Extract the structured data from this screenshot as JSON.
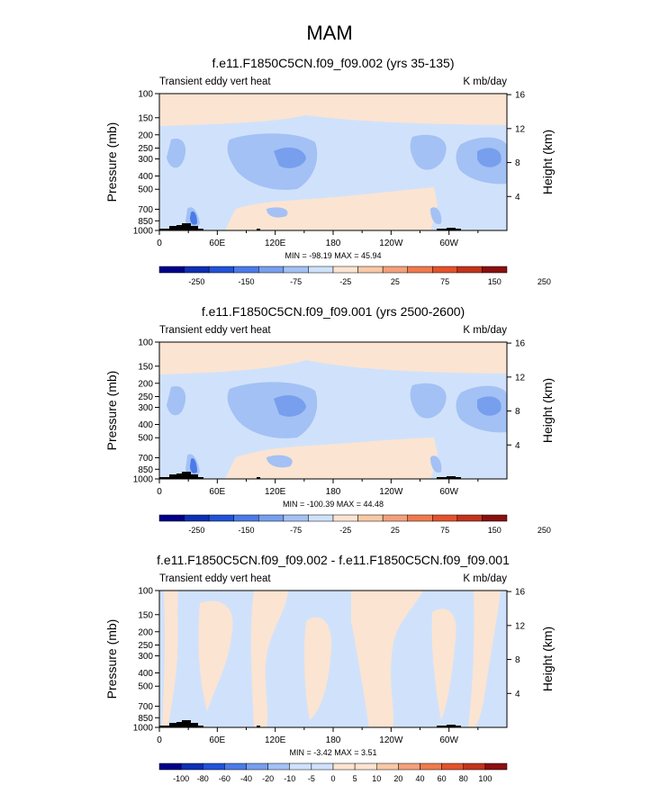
{
  "page_title": "MAM",
  "colors": {
    "dark_blue": "#00008b",
    "mid_blue1": "#0d2fb4",
    "mid_blue2": "#2152d8",
    "blue3": "#4a7be8",
    "blue4": "#779fee",
    "blue5": "#a3c1f4",
    "light_blue": "#d0e2fb",
    "light_peach": "#fbe4d2",
    "peach": "#f8c9a6",
    "orange1": "#f4a07a",
    "orange2": "#ef7a4d",
    "red1": "#e4522b",
    "red2": "#c3331b",
    "dark_red": "#8b1010",
    "terrain": "#000000"
  },
  "chart_data": [
    {
      "type": "heatmap",
      "title": "f.e11.F1850C5CN.f09_f09.002 (yrs 35-135)",
      "subtitle_left": "Transient eddy vert heat",
      "subtitle_right": "K mb/day",
      "ylabel": "Pressure (mb)",
      "ylabel_right": "Height (km)",
      "x_ticks": [
        "0",
        "60E",
        "120E",
        "180",
        "120W",
        "60W"
      ],
      "y_ticks": [
        "100",
        "150",
        "200",
        "250",
        "300",
        "400",
        "500",
        "700",
        "850",
        "1000"
      ],
      "y2_ticks": [
        "16",
        "12",
        "8",
        "4"
      ],
      "stats": "MIN = -98.19  MAX = 45.94",
      "colorbar_labels": [
        "-250",
        "-150",
        "-75",
        "-25",
        "25",
        "75",
        "150",
        "250"
      ],
      "value_range": [
        -98.19,
        45.94
      ]
    },
    {
      "type": "heatmap",
      "title": "f.e11.F1850C5CN.f09_f09.001 (yrs 2500-2600)",
      "subtitle_left": "Transient eddy vert heat",
      "subtitle_right": "K mb/day",
      "ylabel": "Pressure (mb)",
      "ylabel_right": "Height (km)",
      "x_ticks": [
        "0",
        "60E",
        "120E",
        "180",
        "120W",
        "60W"
      ],
      "y_ticks": [
        "100",
        "150",
        "200",
        "250",
        "300",
        "400",
        "500",
        "700",
        "850",
        "1000"
      ],
      "y2_ticks": [
        "16",
        "12",
        "8",
        "4"
      ],
      "stats": "MIN = -100.39  MAX = 44.48",
      "colorbar_labels": [
        "-250",
        "-150",
        "-75",
        "-25",
        "25",
        "75",
        "150",
        "250"
      ],
      "value_range": [
        -100.39,
        44.48
      ]
    },
    {
      "type": "heatmap",
      "title": "f.e11.F1850C5CN.f09_f09.002 - f.e11.F1850C5CN.f09_f09.001",
      "subtitle_left": "Transient eddy vert heat",
      "subtitle_right": "K mb/day",
      "ylabel": "Pressure (mb)",
      "ylabel_right": "Height (km)",
      "x_ticks": [
        "0",
        "60E",
        "120E",
        "180",
        "120W",
        "60W"
      ],
      "y_ticks": [
        "100",
        "150",
        "200",
        "250",
        "300",
        "400",
        "500",
        "700",
        "850",
        "1000"
      ],
      "y2_ticks": [
        "16",
        "12",
        "8",
        "4"
      ],
      "stats": "MIN = -3.42  MAX = 3.51",
      "colorbar_labels": [
        "-100",
        "-80",
        "-60",
        "-40",
        "-20",
        "-10",
        "-5",
        "0",
        "5",
        "10",
        "20",
        "40",
        "60",
        "80",
        "100"
      ],
      "value_range": [
        -3.42,
        3.51
      ]
    }
  ]
}
